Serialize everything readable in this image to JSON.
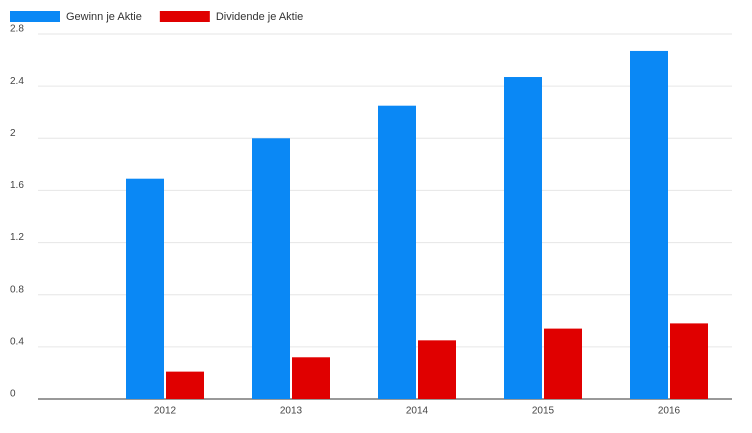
{
  "chart_data": {
    "type": "bar",
    "categories": [
      "2012",
      "2013",
      "2014",
      "2015",
      "2016"
    ],
    "series": [
      {
        "name": "Gewinn je Aktie",
        "color": "#0a88f5",
        "values": [
          1.69,
          2.0,
          2.25,
          2.47,
          2.67
        ]
      },
      {
        "name": "Dividende je Aktie",
        "color": "#e00000",
        "values": [
          0.21,
          0.32,
          0.45,
          0.54,
          0.58
        ]
      }
    ],
    "ylim": [
      0,
      2.8
    ],
    "yticks": [
      0,
      0.4,
      0.8,
      1.2,
      1.6,
      2,
      2.4,
      2.8
    ],
    "grid": true,
    "legend": "top-left"
  }
}
